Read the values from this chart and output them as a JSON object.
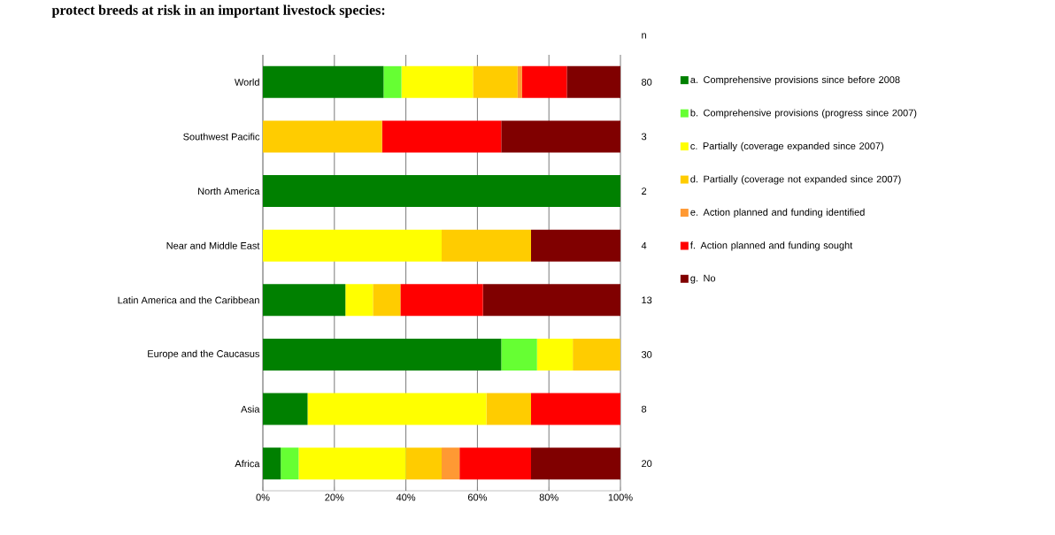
{
  "chart_data": {
    "type": "bar",
    "orientation": "horizontal",
    "stacked": true,
    "title": "protect breeds at risk in an important livestock species:",
    "categories": [
      "World",
      "Southwest Pacific",
      "North America",
      "Near and Middle East",
      "Latin America and the Caribbean",
      "Europe and the Caucasus",
      "Asia",
      "Africa"
    ],
    "series": [
      {
        "name": "a. Comprehensive provisions since before 2008",
        "color": "#008000",
        "values": [
          33.75,
          0,
          100,
          0,
          23.08,
          66.67,
          12.5,
          5
        ]
      },
      {
        "name": "b. Comprehensive provisions (progress since 2007)",
        "color": "#66ff33",
        "values": [
          5,
          0,
          0,
          0,
          0,
          10,
          0,
          5
        ]
      },
      {
        "name": "c. Partially (coverage expanded since 2007)",
        "color": "#ffff00",
        "values": [
          20,
          0,
          0,
          50,
          7.69,
          10,
          50,
          30
        ]
      },
      {
        "name": "d. Partially (coverage not expanded since 2007)",
        "color": "#ffcc00",
        "values": [
          12.5,
          33.33,
          0,
          25,
          7.69,
          13.33,
          12.5,
          10
        ]
      },
      {
        "name": "e. Action planned and funding identified",
        "color": "#ff9933",
        "values": [
          1.25,
          0,
          0,
          0,
          0,
          0,
          0,
          5
        ]
      },
      {
        "name": "f. Action planned and funding sought",
        "color": "#ff0000",
        "values": [
          12.5,
          33.33,
          0,
          0,
          23.08,
          0,
          25,
          20
        ]
      },
      {
        "name": "g. No",
        "color": "#800000",
        "values": [
          15,
          33.33,
          0,
          25,
          38.46,
          0,
          0,
          25
        ]
      }
    ],
    "xlim": [
      0,
      100
    ],
    "xticks": [
      {
        "value": 0,
        "label": "0%"
      },
      {
        "value": 20,
        "label": "20%"
      },
      {
        "value": 40,
        "label": "40%"
      },
      {
        "value": 60,
        "label": "60%"
      },
      {
        "value": 80,
        "label": "80%"
      },
      {
        "value": 100,
        "label": "100%"
      }
    ],
    "grid": "x",
    "legend": "right",
    "annotations": [
      "n",
      "80",
      "3",
      "2",
      "4",
      "13",
      "30",
      "8",
      "20"
    ]
  }
}
